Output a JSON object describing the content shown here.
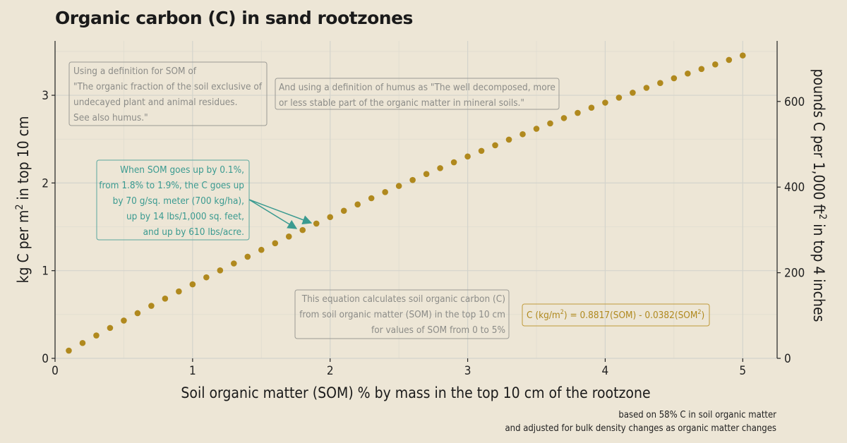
{
  "chart_data": {
    "type": "scatter",
    "title": "Organic carbon (C) in sand rootzones",
    "xlabel": "Soil organic matter (SOM) % by mass in the top 10 cm of the rootzone",
    "ylabel_main": "kg C per m",
    "ylabel_main_sup": "2",
    "ylabel_main_tail": " in top 10 cm",
    "ylabel_right": "pounds C per 1,000 ft",
    "ylabel_right_sup": "2",
    "ylabel_right_tail": " in top 4 inches",
    "xlim": [
      0,
      5.25
    ],
    "ylim": [
      0,
      3.62
    ],
    "xticks": [
      0,
      1,
      2,
      3,
      4,
      5
    ],
    "yticks": [
      0,
      1,
      2,
      3
    ],
    "y2ticks": [
      0,
      200,
      400,
      600
    ],
    "y2_per_kgm2": 204.8,
    "grid": true,
    "equation": {
      "som_coef": 0.8817,
      "som2_coef": 0.0382
    },
    "x": [
      0.1,
      0.2,
      0.3,
      0.4,
      0.5,
      0.6,
      0.7,
      0.8,
      0.9,
      1.0,
      1.1,
      1.2,
      1.3,
      1.4,
      1.5,
      1.6,
      1.7,
      1.8,
      1.9,
      2.0,
      2.1,
      2.2,
      2.3,
      2.4,
      2.5,
      2.6,
      2.7,
      2.8,
      2.9,
      3.0,
      3.1,
      3.2,
      3.3,
      3.4,
      3.5,
      3.6,
      3.7,
      3.8,
      3.9,
      4.0,
      4.1,
      4.2,
      4.3,
      4.4,
      4.5,
      4.6,
      4.7,
      4.8,
      4.9,
      5.0
    ],
    "y": [
      0.088,
      0.175,
      0.261,
      0.347,
      0.431,
      0.515,
      0.599,
      0.681,
      0.763,
      0.844,
      0.924,
      1.003,
      1.082,
      1.159,
      1.237,
      1.313,
      1.389,
      1.463,
      1.537,
      1.611,
      1.683,
      1.755,
      1.826,
      1.896,
      1.966,
      2.034,
      2.102,
      2.169,
      2.236,
      2.302,
      2.366,
      2.43,
      2.494,
      2.556,
      2.618,
      2.679,
      2.74,
      2.799,
      2.858,
      2.916,
      2.973,
      3.029,
      3.085,
      3.14,
      3.194,
      3.248,
      3.3,
      3.352,
      3.403,
      3.454
    ]
  },
  "annotations": {
    "som_def": [
      "Using a definition for SOM of",
      "\"The organic fraction of the soil exclusive of",
      "undecayed plant and animal residues.",
      "See also humus.\""
    ],
    "humus_def": [
      "And using a definition of humus as \"The well decomposed, more",
      "or less stable part of the organic matter in mineral soils.\""
    ],
    "increase": [
      "When SOM goes up by 0.1%,",
      "from 1.8% to 1.9%, the C goes up",
      "by 70 g/sq. meter (700 kg/ha),",
      "up by 14 lbs/1,000 sq. feet,",
      "and up by 610 lbs/acre."
    ],
    "equation_note": [
      "This equation calculates soil organic carbon (C)",
      "from soil organic matter (SOM) in the top 10 cm",
      "for values of SOM from 0 to 5%"
    ],
    "equation": {
      "a": "C (kg/m",
      "a_sup": "2",
      "b": ") = 0.8817(SOM) - 0.0382(SOM",
      "b_sup": "2",
      "c": ")"
    }
  },
  "caption": [
    "based on 58% C in soil organic matter",
    "and adjusted for bulk density changes as organic matter changes"
  ],
  "colors": {
    "background": "#ede6d6",
    "points": "#b0891e",
    "teal": "#3a9a90",
    "gray_note": "#8c8c88"
  }
}
